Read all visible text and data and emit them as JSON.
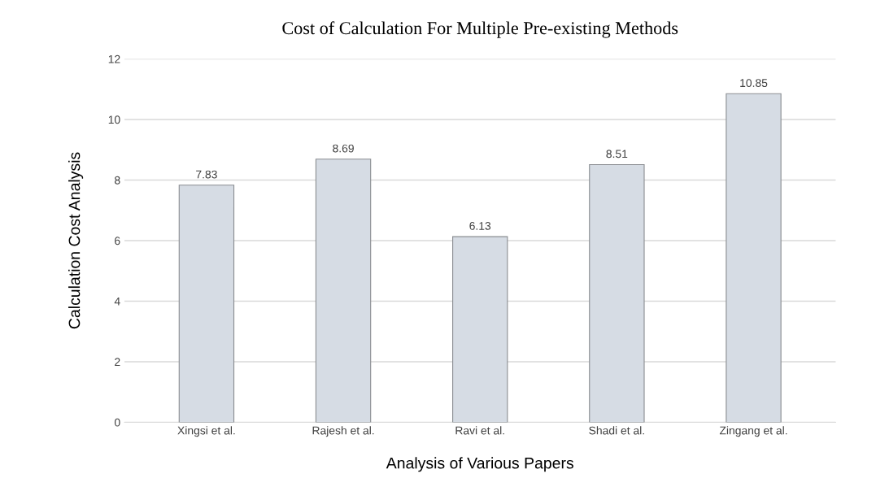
{
  "chart_data": {
    "type": "bar",
    "title": "Cost of Calculation For Multiple Pre-existing Methods",
    "xlabel": "Analysis of Various Papers",
    "ylabel": "Calculation Cost Analysis",
    "categories": [
      "Xingsi et al.",
      "Rajesh et al.",
      "Ravi et al.",
      "Shadi et al.",
      "Zingang et al."
    ],
    "values": [
      7.83,
      8.69,
      6.13,
      8.51,
      10.85
    ],
    "color": "#d6dce4",
    "ylim": [
      0,
      12
    ],
    "yticks": [
      0,
      2,
      4,
      6,
      8,
      10,
      12
    ],
    "grid": "y",
    "data_labels": true
  }
}
